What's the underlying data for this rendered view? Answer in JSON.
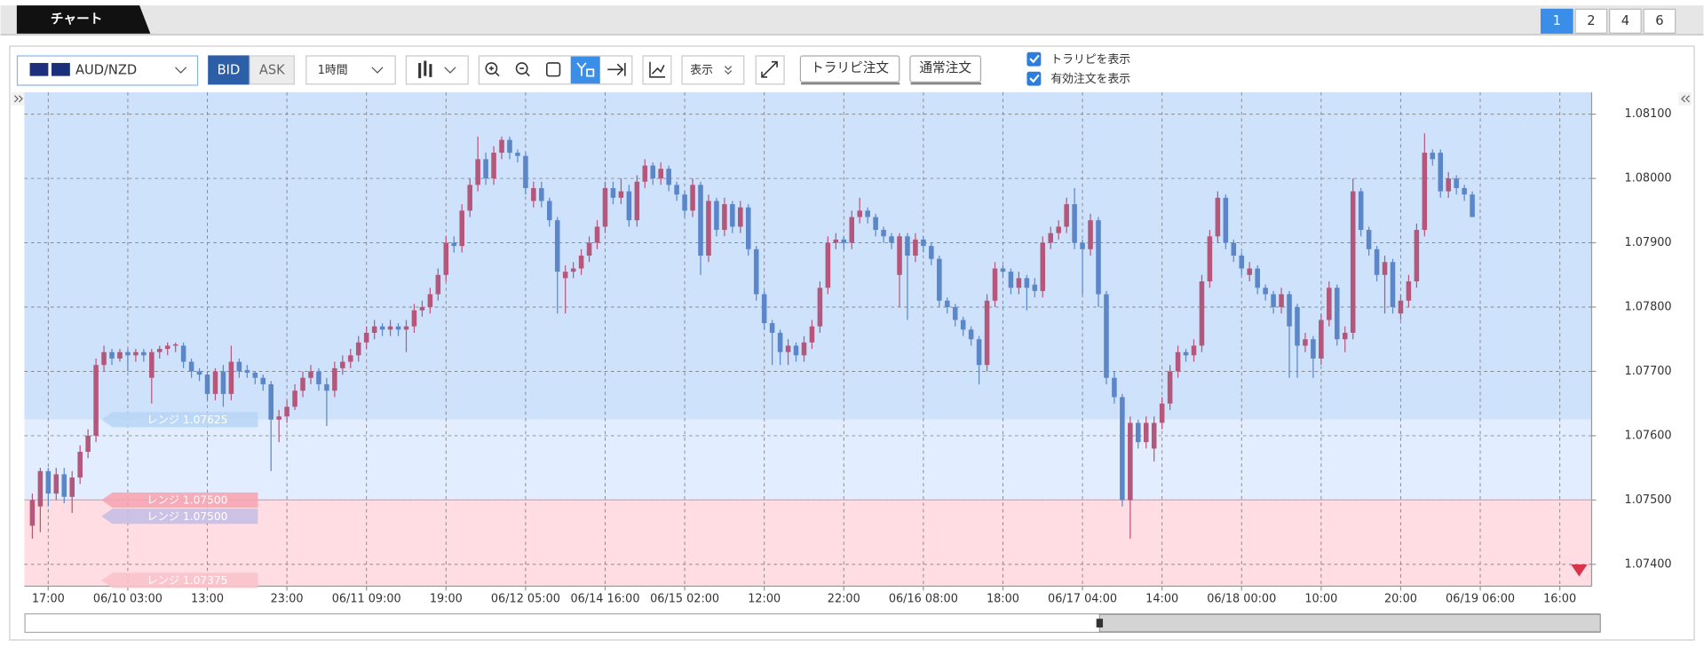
{
  "tab": {
    "title": "チャート"
  },
  "pages": [
    "1",
    "2",
    "4",
    "6"
  ],
  "toolbar": {
    "symbol": "AUD/NZD",
    "bid": "BID",
    "ask": "ASK",
    "timeframe": "1時間",
    "display": "表示",
    "trailing_order": "トラリピ注文",
    "normal_order": "通常注文",
    "show_trailing": "トラリピを表示",
    "show_active": "有効注文を表示"
  },
  "chart_data": {
    "type": "candlestick",
    "up_color": "#b5577b",
    "down_color": "#5b87c9",
    "grid": true,
    "xlim": [
      -1,
      196
    ],
    "ylim": [
      1.07366,
      1.08134
    ],
    "xticks": [
      {
        "value": 2,
        "label": "17:00"
      },
      {
        "value": 12,
        "label": "06/10 03:00"
      },
      {
        "value": 22,
        "label": "13:00"
      },
      {
        "value": 32,
        "label": "23:00"
      },
      {
        "value": 42,
        "label": "06/11 09:00"
      },
      {
        "value": 52,
        "label": "19:00"
      },
      {
        "value": 62,
        "label": "06/12 05:00"
      },
      {
        "value": 72,
        "label": "06/14 16:00"
      },
      {
        "value": 82,
        "label": "06/15 02:00"
      },
      {
        "value": 92,
        "label": "12:00"
      },
      {
        "value": 102,
        "label": "22:00"
      },
      {
        "value": 112,
        "label": "06/16 08:00"
      },
      {
        "value": 122,
        "label": "18:00"
      },
      {
        "value": 132,
        "label": "06/17 04:00"
      },
      {
        "value": 142,
        "label": "14:00"
      },
      {
        "value": 152,
        "label": "06/18 00:00"
      },
      {
        "value": 162,
        "label": "10:00"
      },
      {
        "value": 172,
        "label": "20:00"
      },
      {
        "value": 182,
        "label": "06/19 06:00"
      },
      {
        "value": 192,
        "label": "16:00"
      }
    ],
    "yticks": [
      {
        "value": 1.074,
        "label": "1.07400"
      },
      {
        "value": 1.075,
        "label": "1.07500"
      },
      {
        "value": 1.076,
        "label": "1.07600"
      },
      {
        "value": 1.077,
        "label": "1.07700"
      },
      {
        "value": 1.078,
        "label": "1.07800"
      },
      {
        "value": 1.079,
        "label": "1.07900"
      },
      {
        "value": 1.08,
        "label": "1.08000"
      },
      {
        "value": 1.081,
        "label": "1.08100"
      }
    ],
    "zone_colors": [
      "#cfe2fc",
      "#e2eeff",
      "#ffdde3"
    ],
    "range_lines": [
      {
        "label": "レンジ 1.07625",
        "value": 1.07625,
        "color": "#b8d6f6"
      },
      {
        "label": "レンジ 1.07500",
        "value": 1.075,
        "color": "#f7a5b3"
      },
      {
        "label": "レンジ 1.07500",
        "value": 1.075,
        "color": "#c5bfe6"
      },
      {
        "label": "レンジ 1.07375",
        "value": 1.07375,
        "color": "#fbc2cb"
      }
    ],
    "candles": [
      [
        1.0746,
        1.0751,
        1.0744,
        1.075
      ],
      [
        1.0749,
        1.0755,
        1.0745,
        1.07545
      ],
      [
        1.07545,
        1.0755,
        1.0749,
        1.0751
      ],
      [
        1.0751,
        1.0755,
        1.075,
        1.0754
      ],
      [
        1.0754,
        1.0755,
        1.07495,
        1.07505
      ],
      [
        1.07505,
        1.07545,
        1.0748,
        1.07535
      ],
      [
        1.07535,
        1.07585,
        1.07525,
        1.07575
      ],
      [
        1.07575,
        1.0761,
        1.07565,
        1.076
      ],
      [
        1.076,
        1.0772,
        1.0759,
        1.0771
      ],
      [
        1.0771,
        1.0774,
        1.077,
        1.0773
      ],
      [
        1.0773,
        1.07735,
        1.0771,
        1.0772
      ],
      [
        1.0772,
        1.07735,
        1.07715,
        1.0773
      ],
      [
        1.0773,
        1.07735,
        1.077,
        1.07725
      ],
      [
        1.07725,
        1.07735,
        1.07715,
        1.0773
      ],
      [
        1.0773,
        1.07735,
        1.07715,
        1.07725
      ],
      [
        1.0769,
        1.07735,
        1.0765,
        1.0773
      ],
      [
        1.0773,
        1.0774,
        1.0772,
        1.07735
      ],
      [
        1.07735,
        1.07745,
        1.07725,
        1.0774
      ],
      [
        1.0774,
        1.07745,
        1.0773,
        1.07742
      ],
      [
        1.0774,
        1.07745,
        1.07705,
        1.07715
      ],
      [
        1.07715,
        1.0772,
        1.0769,
        1.077
      ],
      [
        1.077,
        1.07705,
        1.07685,
        1.07695
      ],
      [
        1.07695,
        1.077,
        1.07655,
        1.07665
      ],
      [
        1.07665,
        1.07705,
        1.07655,
        1.077
      ],
      [
        1.077,
        1.0771,
        1.07645,
        1.07665
      ],
      [
        1.07665,
        1.0774,
        1.07655,
        1.07715
      ],
      [
        1.07715,
        1.0772,
        1.0769,
        1.077
      ],
      [
        1.07702,
        1.0771,
        1.0769,
        1.07698
      ],
      [
        1.07698,
        1.077,
        1.0768,
        1.0769
      ],
      [
        1.0769,
        1.07695,
        1.0767,
        1.0768
      ],
      [
        1.0768,
        1.07685,
        1.07545,
        1.07625
      ],
      [
        1.07625,
        1.0764,
        1.0759,
        1.0763
      ],
      [
        1.0763,
        1.07655,
        1.0762,
        1.07645
      ],
      [
        1.07645,
        1.0768,
        1.0764,
        1.0767
      ],
      [
        1.0767,
        1.077,
        1.0766,
        1.0769
      ],
      [
        1.0769,
        1.0771,
        1.0768,
        1.077
      ],
      [
        1.077,
        1.07705,
        1.0767,
        1.0768
      ],
      [
        1.0768,
        1.0769,
        1.07615,
        1.0767
      ],
      [
        1.0767,
        1.07715,
        1.0766,
        1.07705
      ],
      [
        1.07705,
        1.07725,
        1.07695,
        1.07715
      ],
      [
        1.07715,
        1.07735,
        1.07705,
        1.07725
      ],
      [
        1.07725,
        1.07755,
        1.07715,
        1.07745
      ],
      [
        1.07745,
        1.0777,
        1.07735,
        1.0776
      ],
      [
        1.0776,
        1.0778,
        1.0775,
        1.0777
      ],
      [
        1.0777,
        1.07775,
        1.07755,
        1.07765
      ],
      [
        1.07765,
        1.0778,
        1.07755,
        1.0777
      ],
      [
        1.0777,
        1.07775,
        1.07755,
        1.07765
      ],
      [
        1.07765,
        1.0778,
        1.0773,
        1.0777
      ],
      [
        1.0777,
        1.07805,
        1.0776,
        1.07795
      ],
      [
        1.07795,
        1.0781,
        1.07785,
        1.078
      ],
      [
        1.078,
        1.0783,
        1.0779,
        1.0782
      ],
      [
        1.0782,
        1.0786,
        1.0781,
        1.0785
      ],
      [
        1.0785,
        1.0791,
        1.0784,
        1.079
      ],
      [
        1.079,
        1.0791,
        1.07885,
        1.07895
      ],
      [
        1.07895,
        1.0796,
        1.07885,
        1.0795
      ],
      [
        1.0795,
        1.08,
        1.0794,
        1.0799
      ],
      [
        1.0799,
        1.08065,
        1.0798,
        1.0803
      ],
      [
        1.0803,
        1.0804,
        1.0799,
        1.08
      ],
      [
        1.08,
        1.0805,
        1.0799,
        1.0804
      ],
      [
        1.0804,
        1.08065,
        1.0803,
        1.0806
      ],
      [
        1.0806,
        1.08065,
        1.0803,
        1.0804
      ],
      [
        1.0804,
        1.08045,
        1.08025,
        1.08035
      ],
      [
        1.08035,
        1.0804,
        1.07975,
        1.07985
      ],
      [
        1.07965,
        1.07995,
        1.07955,
        1.07985
      ],
      [
        1.07985,
        1.07995,
        1.07955,
        1.07965
      ],
      [
        1.07965,
        1.0797,
        1.07925,
        1.07935
      ],
      [
        1.07935,
        1.0794,
        1.0779,
        1.07855
      ],
      [
        1.07845,
        1.07865,
        1.0779,
        1.07855
      ],
      [
        1.07855,
        1.0787,
        1.07845,
        1.0786
      ],
      [
        1.0786,
        1.0789,
        1.0785,
        1.0788
      ],
      [
        1.0788,
        1.0791,
        1.0787,
        1.079
      ],
      [
        1.079,
        1.07935,
        1.0789,
        1.07925
      ],
      [
        1.07925,
        1.07995,
        1.07915,
        1.07985
      ],
      [
        1.07985,
        1.07995,
        1.0796,
        1.0797
      ],
      [
        1.0797,
        1.08,
        1.0796,
        1.0798
      ],
      [
        1.0798,
        1.0799,
        1.07925,
        1.07935
      ],
      [
        1.07935,
        1.08005,
        1.07925,
        1.07995
      ],
      [
        1.07995,
        1.0803,
        1.07985,
        1.0802
      ],
      [
        1.0802,
        1.08025,
        1.0799,
        1.08
      ],
      [
        1.08,
        1.08025,
        1.0799,
        1.08015
      ],
      [
        1.08015,
        1.0802,
        1.0798,
        1.0799
      ],
      [
        1.0799,
        1.07995,
        1.07965,
        1.07975
      ],
      [
        1.07975,
        1.0798,
        1.0794,
        1.0795
      ],
      [
        1.0795,
        1.08,
        1.0794,
        1.0799
      ],
      [
        1.0799,
        1.07995,
        1.0785,
        1.0788
      ],
      [
        1.0788,
        1.07975,
        1.0787,
        1.07965
      ],
      [
        1.07965,
        1.0797,
        1.0791,
        1.0792
      ],
      [
        1.0792,
        1.0797,
        1.0791,
        1.0796
      ],
      [
        1.0796,
        1.07965,
        1.07915,
        1.07925
      ],
      [
        1.07925,
        1.07965,
        1.07915,
        1.07955
      ],
      [
        1.07955,
        1.0796,
        1.0788,
        1.0789
      ],
      [
        1.0789,
        1.07895,
        1.0781,
        1.0782
      ],
      [
        1.0782,
        1.07825,
        1.07765,
        1.07775
      ],
      [
        1.07775,
        1.0778,
        1.0771,
        1.0776
      ],
      [
        1.0776,
        1.07765,
        1.0771,
        1.0773
      ],
      [
        1.0773,
        1.0775,
        1.0771,
        1.0774
      ],
      [
        1.0774,
        1.07745,
        1.07715,
        1.07725
      ],
      [
        1.07725,
        1.07755,
        1.07715,
        1.07745
      ],
      [
        1.07745,
        1.0778,
        1.07735,
        1.0777
      ],
      [
        1.0777,
        1.0784,
        1.0776,
        1.0783
      ],
      [
        1.0783,
        1.0791,
        1.0782,
        1.079
      ],
      [
        1.079,
        1.07915,
        1.0789,
        1.07905
      ],
      [
        1.07905,
        1.0791,
        1.0789,
        1.079
      ],
      [
        1.079,
        1.0795,
        1.0789,
        1.0794
      ],
      [
        1.0794,
        1.0797,
        1.0793,
        1.0795
      ],
      [
        1.0795,
        1.07955,
        1.0793,
        1.0794
      ],
      [
        1.0794,
        1.07945,
        1.0791,
        1.0792
      ],
      [
        1.0792,
        1.07925,
        1.079,
        1.0791
      ],
      [
        1.0791,
        1.07915,
        1.0789,
        1.079
      ],
      [
        1.0785,
        1.07915,
        1.078,
        1.0791
      ],
      [
        1.0791,
        1.07915,
        1.0778,
        1.0788
      ],
      [
        1.0788,
        1.07915,
        1.0787,
        1.07905
      ],
      [
        1.07905,
        1.0791,
        1.07885,
        1.07895
      ],
      [
        1.07895,
        1.079,
        1.07865,
        1.07875
      ],
      [
        1.07875,
        1.0788,
        1.078,
        1.0781
      ],
      [
        1.0781,
        1.07815,
        1.0779,
        1.078
      ],
      [
        1.078,
        1.07805,
        1.0777,
        1.0778
      ],
      [
        1.0778,
        1.07785,
        1.07755,
        1.07765
      ],
      [
        1.07765,
        1.0777,
        1.0774,
        1.0775
      ],
      [
        1.0775,
        1.07755,
        1.0768,
        1.0771
      ],
      [
        1.0771,
        1.0782,
        1.077,
        1.0781
      ],
      [
        1.0781,
        1.0787,
        1.078,
        1.0786
      ],
      [
        1.0786,
        1.07865,
        1.07845,
        1.07855
      ],
      [
        1.07855,
        1.0786,
        1.0782,
        1.0783
      ],
      [
        1.0783,
        1.07855,
        1.0782,
        1.07845
      ],
      [
        1.07845,
        1.0785,
        1.07795,
        1.0783
      ],
      [
        1.07835,
        1.07845,
        1.07815,
        1.07825
      ],
      [
        1.07825,
        1.0791,
        1.07815,
        1.079
      ],
      [
        1.079,
        1.07925,
        1.0789,
        1.07915
      ],
      [
        1.07915,
        1.07935,
        1.07905,
        1.07925
      ],
      [
        1.07925,
        1.0797,
        1.07915,
        1.0796
      ],
      [
        1.0796,
        1.07985,
        1.0789,
        1.079
      ],
      [
        1.079,
        1.07905,
        1.0782,
        1.0789
      ],
      [
        1.0789,
        1.07945,
        1.0788,
        1.07935
      ],
      [
        1.07935,
        1.0794,
        1.078,
        1.0782
      ],
      [
        1.0782,
        1.07825,
        1.0768,
        1.0769
      ],
      [
        1.0769,
        1.077,
        1.0765,
        1.0766
      ],
      [
        1.0766,
        1.07665,
        1.0749,
        1.075
      ],
      [
        1.075,
        1.0763,
        1.0744,
        1.0762
      ],
      [
        1.0762,
        1.07625,
        1.0758,
        1.0759
      ],
      [
        1.0759,
        1.0763,
        1.0758,
        1.0762
      ],
      [
        1.0758,
        1.0763,
        1.0756,
        1.0762
      ],
      [
        1.0762,
        1.0766,
        1.0761,
        1.0765
      ],
      [
        1.0765,
        1.0771,
        1.0764,
        1.077
      ],
      [
        1.077,
        1.0774,
        1.0769,
        1.0773
      ],
      [
        1.0773,
        1.07735,
        1.07715,
        1.07725
      ],
      [
        1.07725,
        1.0775,
        1.07715,
        1.0774
      ],
      [
        1.0774,
        1.0785,
        1.0773,
        1.0784
      ],
      [
        1.0784,
        1.0792,
        1.0783,
        1.0791
      ],
      [
        1.0791,
        1.0798,
        1.079,
        1.0797
      ],
      [
        1.0797,
        1.07975,
        1.0789,
        1.079
      ],
      [
        1.079,
        1.07905,
        1.0787,
        1.0788
      ],
      [
        1.0788,
        1.07885,
        1.0785,
        1.0786
      ],
      [
        1.0785,
        1.0787,
        1.0784,
        1.0786
      ],
      [
        1.0786,
        1.07865,
        1.0782,
        1.0783
      ],
      [
        1.0783,
        1.07835,
        1.0781,
        1.0782
      ],
      [
        1.0782,
        1.07825,
        1.0779,
        1.078
      ],
      [
        1.078,
        1.0783,
        1.0779,
        1.0782
      ],
      [
        1.0782,
        1.07825,
        1.0769,
        1.0777
      ],
      [
        1.078,
        1.07805,
        1.0769,
        1.0774
      ],
      [
        1.0774,
        1.0776,
        1.0773,
        1.0775
      ],
      [
        1.0775,
        1.07755,
        1.0769,
        1.0772
      ],
      [
        1.0772,
        1.0779,
        1.0771,
        1.0778
      ],
      [
        1.0778,
        1.0784,
        1.0777,
        1.0783
      ],
      [
        1.0783,
        1.07835,
        1.0774,
        1.0775
      ],
      [
        1.0775,
        1.0777,
        1.0773,
        1.0776
      ],
      [
        1.0776,
        1.08,
        1.0775,
        1.0798
      ],
      [
        1.0798,
        1.07985,
        1.0791,
        1.0792
      ],
      [
        1.0792,
        1.07925,
        1.0788,
        1.0789
      ],
      [
        1.0789,
        1.07895,
        1.0784,
        1.0785
      ],
      [
        1.0785,
        1.0788,
        1.0779,
        1.0787
      ],
      [
        1.0787,
        1.07875,
        1.0779,
        1.078
      ],
      [
        1.0779,
        1.0782,
        1.0778,
        1.0781
      ],
      [
        1.0781,
        1.0785,
        1.078,
        1.0784
      ],
      [
        1.0784,
        1.0793,
        1.0783,
        1.0792
      ],
      [
        1.0792,
        1.0807,
        1.0791,
        1.0804
      ],
      [
        1.0804,
        1.08045,
        1.0802,
        1.0803
      ],
      [
        1.0804,
        1.08045,
        1.0797,
        1.0798
      ],
      [
        1.0798,
        1.0801,
        1.0797,
        1.08
      ],
      [
        1.08,
        1.08005,
        1.07975,
        1.07985
      ],
      [
        1.07985,
        1.0799,
        1.07965,
        1.07975
      ],
      [
        1.07975,
        1.0798,
        1.0794,
        1.0794
      ]
    ]
  }
}
